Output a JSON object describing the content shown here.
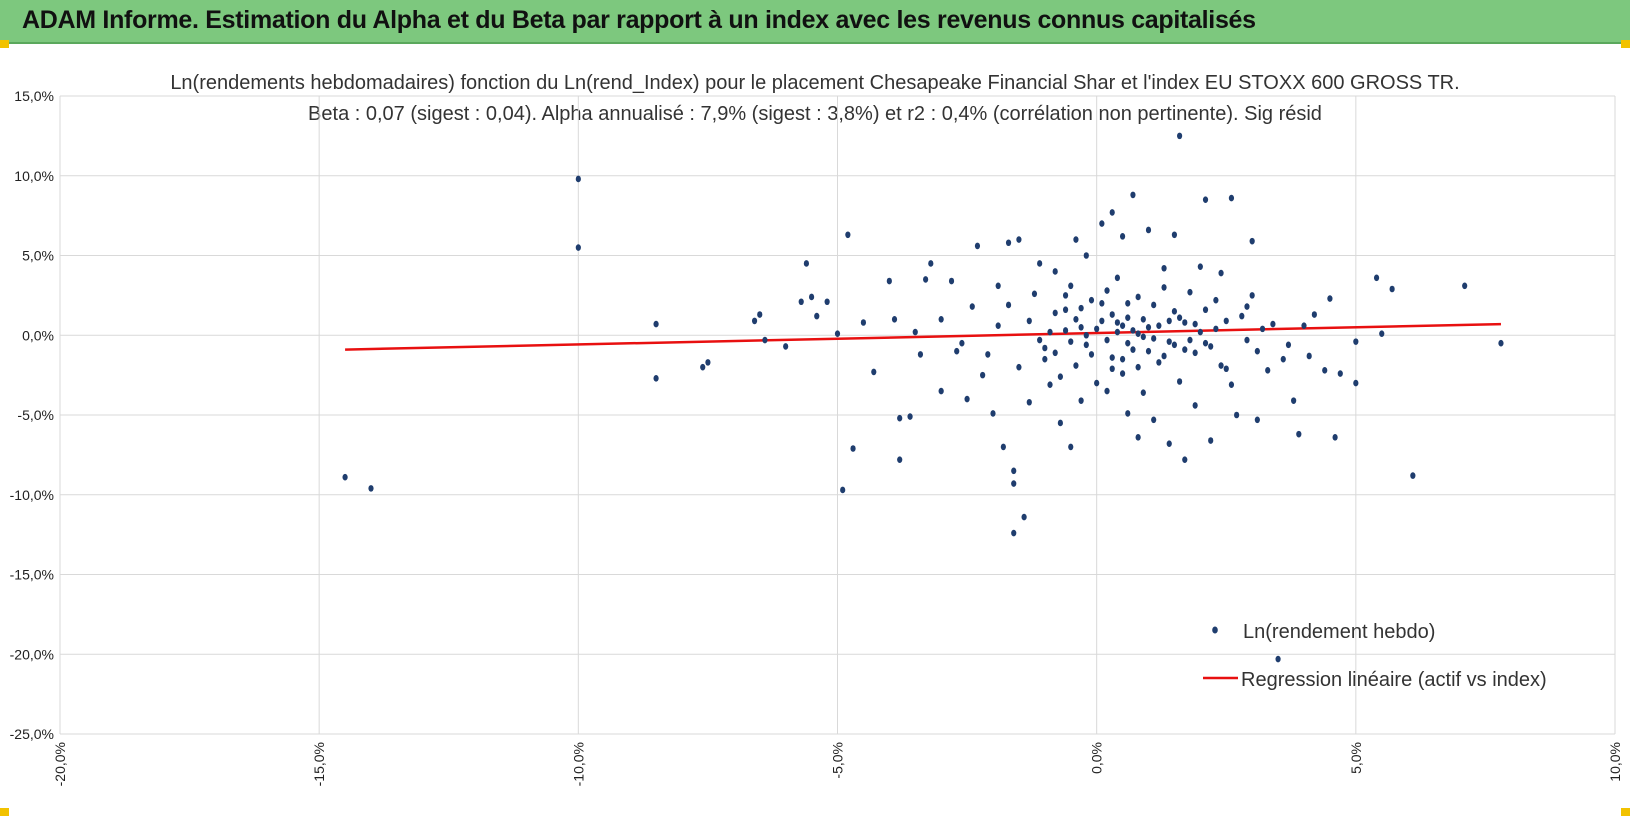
{
  "header": {
    "title": "ADAM Informe. Estimation du Alpha et du Beta par rapport à un index avec les revenus connus capitalisés"
  },
  "colors": {
    "banner": "#7dc87e",
    "points": "#1f3d6e",
    "regression": "#e81010",
    "grid": "#d9d9d9",
    "corner": "#f2c200"
  },
  "chart_data": {
    "type": "scatter",
    "title": "Ln(rendements hebdomadaires) fonction du Ln(rend_Index) pour le placement Chesapeake Financial Shar et l'index EU STOXX 600 GROSS TR.",
    "subtitle": "Beta : 0,07 (sigest : 0,04). Alpha annualisé : 7,9% (sigest : 3,8%) et r2 : 0,4% (corrélation non pertinente). Sig résid",
    "xlabel": "",
    "ylabel": "",
    "xlim": [
      -20,
      10
    ],
    "ylim": [
      -25,
      15
    ],
    "x_ticks": [
      "-20,0%",
      "-15,0%",
      "-10,0%",
      "-5,0%",
      "0,0%",
      "5,0%",
      "10,0%"
    ],
    "y_ticks": [
      "15,0%",
      "10,0%",
      "5,0%",
      "0,0%",
      "-5,0%",
      "-10,0%",
      "-15,0%",
      "-20,0%",
      "-25,0%"
    ],
    "grid": true,
    "legend_position": "bottom-right",
    "series": [
      {
        "name": "Ln(rendement hebdo)",
        "kind": "scatter",
        "points": [
          [
            -14.5,
            -8.9
          ],
          [
            -14.0,
            -9.6
          ],
          [
            -10.0,
            9.8
          ],
          [
            -10.0,
            5.5
          ],
          [
            -8.5,
            0.7
          ],
          [
            -8.5,
            -2.7
          ],
          [
            -7.6,
            -2.0
          ],
          [
            -7.5,
            -1.7
          ],
          [
            -6.6,
            0.9
          ],
          [
            -6.5,
            1.3
          ],
          [
            -6.4,
            -0.3
          ],
          [
            -6.0,
            -0.7
          ],
          [
            -5.7,
            2.1
          ],
          [
            -5.6,
            4.5
          ],
          [
            -5.5,
            2.4
          ],
          [
            -5.4,
            1.2
          ],
          [
            -5.2,
            2.1
          ],
          [
            -5.0,
            0.1
          ],
          [
            -4.8,
            6.3
          ],
          [
            -4.7,
            -7.1
          ],
          [
            -4.9,
            -9.7
          ],
          [
            -4.5,
            0.8
          ],
          [
            -4.3,
            -2.3
          ],
          [
            -4.0,
            3.4
          ],
          [
            -3.9,
            1.0
          ],
          [
            -3.8,
            -5.2
          ],
          [
            -3.8,
            -7.8
          ],
          [
            -3.6,
            -5.1
          ],
          [
            -3.4,
            -1.2
          ],
          [
            -3.3,
            3.5
          ],
          [
            -3.2,
            4.5
          ],
          [
            -3.0,
            -3.5
          ],
          [
            -2.8,
            3.4
          ],
          [
            -2.7,
            -1.0
          ],
          [
            -2.5,
            -4.0
          ],
          [
            -2.3,
            5.6
          ],
          [
            -2.2,
            -2.5
          ],
          [
            -2.0,
            -4.9
          ],
          [
            -1.9,
            3.1
          ],
          [
            -1.8,
            -7.0
          ],
          [
            -1.7,
            5.8
          ],
          [
            -1.6,
            -8.5
          ],
          [
            -1.6,
            -9.3
          ],
          [
            -1.6,
            -12.4
          ],
          [
            -1.5,
            6.0
          ],
          [
            -1.4,
            -11.4
          ],
          [
            -1.3,
            -4.2
          ],
          [
            -1.1,
            4.5
          ],
          [
            -1.0,
            -1.5
          ],
          [
            -0.9,
            -3.1
          ],
          [
            -0.8,
            4.0
          ],
          [
            -0.7,
            -5.5
          ],
          [
            -0.6,
            2.5
          ],
          [
            -0.5,
            -7.0
          ],
          [
            -0.4,
            6.0
          ],
          [
            -0.3,
            -4.1
          ],
          [
            -0.2,
            5.0
          ],
          [
            0.1,
            7.0
          ],
          [
            0.2,
            -3.5
          ],
          [
            0.3,
            7.7
          ],
          [
            0.5,
            6.2
          ],
          [
            0.6,
            -4.9
          ],
          [
            0.7,
            8.8
          ],
          [
            0.8,
            -6.4
          ],
          [
            1.0,
            6.6
          ],
          [
            1.1,
            -5.3
          ],
          [
            1.3,
            4.2
          ],
          [
            1.4,
            -6.8
          ],
          [
            1.5,
            6.3
          ],
          [
            1.6,
            12.5
          ],
          [
            1.7,
            -7.8
          ],
          [
            1.9,
            -4.4
          ],
          [
            2.0,
            4.3
          ],
          [
            2.1,
            8.5
          ],
          [
            2.2,
            -6.6
          ],
          [
            2.4,
            3.9
          ],
          [
            2.5,
            -2.1
          ],
          [
            2.6,
            8.6
          ],
          [
            2.7,
            -5.0
          ],
          [
            2.9,
            1.8
          ],
          [
            3.0,
            5.9
          ],
          [
            3.1,
            -5.3
          ],
          [
            3.2,
            0.4
          ],
          [
            3.3,
            -2.2
          ],
          [
            3.5,
            -20.3
          ],
          [
            3.6,
            -1.5
          ],
          [
            3.8,
            -4.1
          ],
          [
            3.9,
            -6.2
          ],
          [
            4.0,
            0.6
          ],
          [
            4.2,
            1.3
          ],
          [
            4.4,
            -2.2
          ],
          [
            4.5,
            2.3
          ],
          [
            4.6,
            -6.4
          ],
          [
            4.7,
            -2.4
          ],
          [
            5.0,
            -0.4
          ],
          [
            5.0,
            -3.0
          ],
          [
            5.4,
            3.6
          ],
          [
            5.5,
            0.1
          ],
          [
            5.7,
            2.9
          ],
          [
            6.1,
            -8.8
          ],
          [
            7.1,
            3.1
          ],
          [
            7.8,
            -0.5
          ],
          [
            -3.5,
            0.2
          ],
          [
            -3.0,
            1.0
          ],
          [
            -2.6,
            -0.5
          ],
          [
            -2.4,
            1.8
          ],
          [
            -2.1,
            -1.2
          ],
          [
            -1.9,
            0.6
          ],
          [
            -1.7,
            1.9
          ],
          [
            -1.5,
            -2.0
          ],
          [
            -1.3,
            0.9
          ],
          [
            -1.2,
            2.6
          ],
          [
            -1.0,
            -0.8
          ],
          [
            -0.8,
            1.4
          ],
          [
            -0.7,
            -2.6
          ],
          [
            -0.6,
            0.3
          ],
          [
            -0.5,
            3.1
          ],
          [
            -0.4,
            -1.9
          ],
          [
            -0.3,
            1.7
          ],
          [
            -0.2,
            -0.6
          ],
          [
            -0.1,
            2.2
          ],
          [
            0.0,
            -3.0
          ],
          [
            0.1,
            0.9
          ],
          [
            0.2,
            2.8
          ],
          [
            0.3,
            -1.4
          ],
          [
            0.4,
            0.2
          ],
          [
            0.4,
            3.6
          ],
          [
            0.5,
            -2.4
          ],
          [
            0.6,
            1.1
          ],
          [
            0.7,
            -0.9
          ],
          [
            0.8,
            2.4
          ],
          [
            0.9,
            -3.6
          ],
          [
            1.0,
            0.5
          ],
          [
            1.1,
            1.9
          ],
          [
            1.2,
            -1.7
          ],
          [
            1.3,
            3.0
          ],
          [
            1.4,
            -0.4
          ],
          [
            1.5,
            1.5
          ],
          [
            1.6,
            -2.9
          ],
          [
            1.7,
            0.8
          ],
          [
            1.8,
            2.7
          ],
          [
            1.9,
            -1.1
          ],
          [
            2.0,
            0.2
          ],
          [
            2.1,
            1.6
          ],
          [
            2.2,
            -0.7
          ],
          [
            2.3,
            2.2
          ],
          [
            2.4,
            -1.9
          ],
          [
            2.5,
            0.9
          ],
          [
            2.6,
            -3.1
          ],
          [
            2.8,
            1.2
          ],
          [
            2.9,
            -0.3
          ],
          [
            3.0,
            2.5
          ],
          [
            3.1,
            -1.0
          ],
          [
            3.4,
            0.7
          ],
          [
            3.7,
            -0.6
          ],
          [
            4.1,
            -1.3
          ],
          [
            0.0,
            0.4
          ],
          [
            0.2,
            -0.3
          ],
          [
            0.4,
            0.8
          ],
          [
            0.6,
            -0.5
          ],
          [
            0.8,
            0.1
          ],
          [
            1.0,
            -1.0
          ],
          [
            1.2,
            0.6
          ],
          [
            -0.1,
            -1.2
          ],
          [
            0.3,
            1.3
          ],
          [
            0.9,
            1.0
          ],
          [
            -0.3,
            0.5
          ],
          [
            0.7,
            0.3
          ],
          [
            1.1,
            -0.2
          ],
          [
            -0.5,
            -0.4
          ],
          [
            1.4,
            0.9
          ],
          [
            0.5,
            -1.5
          ],
          [
            -0.9,
            0.2
          ],
          [
            1.8,
            -0.3
          ],
          [
            0.1,
            2.0
          ],
          [
            1.6,
            1.1
          ],
          [
            -0.6,
            1.6
          ],
          [
            2.1,
            -0.5
          ],
          [
            0.6,
            2.0
          ],
          [
            1.3,
            -1.3
          ],
          [
            -1.1,
            -0.3
          ],
          [
            -0.2,
            0.0
          ],
          [
            0.9,
            -0.1
          ],
          [
            1.7,
            -0.9
          ],
          [
            0.3,
            -2.1
          ],
          [
            -0.8,
            -1.1
          ],
          [
            2.3,
            0.4
          ],
          [
            0.5,
            0.6
          ],
          [
            1.5,
            -0.6
          ],
          [
            -0.4,
            1.0
          ],
          [
            0.8,
            -2.0
          ],
          [
            1.9,
            0.7
          ]
        ]
      },
      {
        "name": "Regression linéaire (actif vs index)",
        "kind": "line",
        "points": [
          [
            -14.5,
            -0.9
          ],
          [
            7.8,
            0.7
          ]
        ]
      }
    ]
  }
}
